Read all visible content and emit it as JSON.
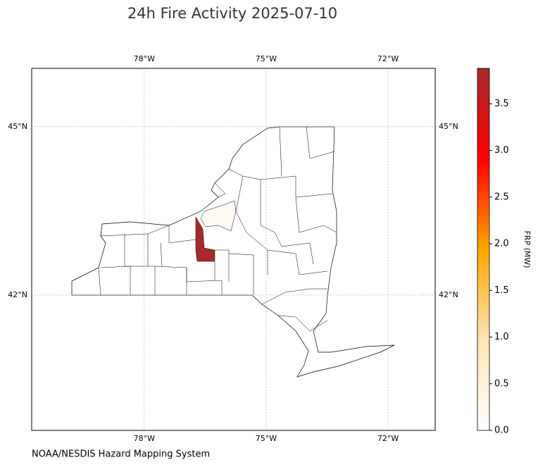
{
  "title": "24h Fire Activity 2025-07-10",
  "map": {
    "lonlim": [
      -80.77,
      -70.84
    ],
    "latlim": [
      39.59,
      46.04
    ],
    "grid": true,
    "lon_ticks": [
      {
        "value": -78,
        "label": "78°W"
      },
      {
        "value": -75,
        "label": "75°W"
      },
      {
        "value": -72,
        "label": "72°W"
      }
    ],
    "lat_ticks": [
      {
        "value": 45,
        "label": "45°N"
      },
      {
        "value": 42,
        "label": "42°N"
      }
    ]
  },
  "fires": {
    "values": [
      3.85,
      0.15
    ]
  },
  "colorbar": {
    "label": "FRP (MW)",
    "lim": [
      0,
      3.88
    ],
    "colors": [
      "#ffffff",
      "#ffe4b5",
      "#ffa500",
      "#ff0000",
      "#a52a2a"
    ],
    "ticks": [
      {
        "value": 0,
        "label": "0.0"
      },
      {
        "value": 0.5,
        "label": "0.5"
      },
      {
        "value": 1,
        "label": "1.0"
      },
      {
        "value": 1.5,
        "label": "1.5"
      },
      {
        "value": 2,
        "label": "2.0"
      },
      {
        "value": 2.5,
        "label": "2.5"
      },
      {
        "value": 3,
        "label": "3.0"
      },
      {
        "value": 3.5,
        "label": "3.5"
      }
    ]
  },
  "source": "NOAA/NESDIS Hazard Mapping System"
}
